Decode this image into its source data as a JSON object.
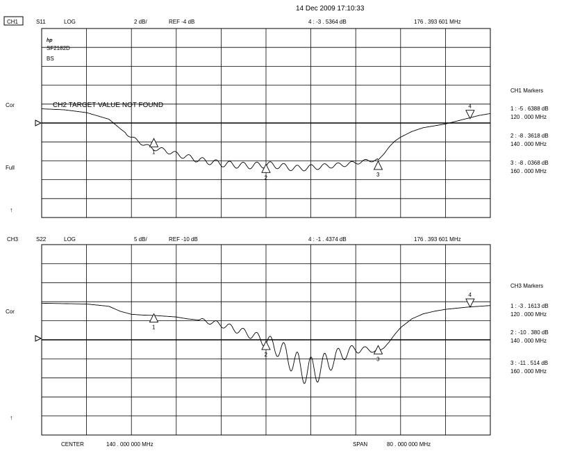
{
  "timestamp": "14 Dec 2009  17:10:33",
  "footer": {
    "center_label": "CENTER",
    "center_value": "140  . 000   000   MHz",
    "span_label": "SPAN",
    "span_value": "80 . 000   000   MHz"
  },
  "chart_data": [
    {
      "type": "line",
      "channel": "CH1",
      "param": "S11",
      "format": "LOG",
      "scale": "2 dB/",
      "ref": "REF -4 dB",
      "active_marker_readout": "4 : -3  . 5364   dB",
      "active_marker_freq": "176  . 393   601   MHz",
      "side_labels": [
        "Cor",
        "Full",
        "↑"
      ],
      "logo_text": "hp",
      "device_lines": [
        "SF2182D",
        "BS"
      ],
      "message": "CH2 TARGET VALUE NOT FOUND",
      "divisions": 10,
      "ref_value": -4,
      "db_per_div": 2,
      "ylim": [
        -14,
        6
      ],
      "xlim": [
        100,
        180
      ],
      "x_unit": "MHz",
      "series": [
        {
          "x": [
            100,
            104,
            108,
            112,
            114,
            116,
            118,
            119,
            120,
            122,
            124,
            126,
            128,
            130,
            132,
            134,
            136,
            138,
            140,
            142,
            144,
            146,
            148,
            150,
            152,
            154,
            156,
            158,
            160,
            161,
            162,
            163,
            164,
            166,
            168,
            170,
            172,
            174,
            176,
            178,
            180
          ],
          "y": [
            -2.5,
            -2.6,
            -2.9,
            -3.6,
            -4.6,
            -5.5,
            -6.2,
            -6.5,
            -6.7,
            -6.9,
            -7.3,
            -7.6,
            -7.9,
            -8.1,
            -8.3,
            -8.4,
            -8.5,
            -8.5,
            -8.4,
            -8.5,
            -8.7,
            -8.8,
            -8.7,
            -8.6,
            -8.5,
            -8.4,
            -8.2,
            -8.0,
            -7.9,
            -7.3,
            -6.5,
            -5.9,
            -5.5,
            -4.9,
            -4.5,
            -4.3,
            -4.1,
            -3.8,
            -3.5,
            -3.2,
            -3.0
          ]
        }
      ],
      "ripple_range": [
        115,
        160
      ],
      "markers": [
        {
          "id": "1",
          "freq": 120,
          "value": -5.6388,
          "dir": "up"
        },
        {
          "id": "2",
          "freq": 140,
          "value": -8.3618,
          "dir": "up"
        },
        {
          "id": "3",
          "freq": 160,
          "value": -8.0368,
          "dir": "up"
        },
        {
          "id": "4",
          "freq": 176.393601,
          "value": -3.5364,
          "dir": "down"
        }
      ],
      "marker_table": {
        "title": "CH1   Markers",
        "entries": [
          {
            "line1": "1 : -5  . 6388     dB",
            "line2": "120  . 000     MHz"
          },
          {
            "line1": "2 : -8  . 3618     dB",
            "line2": "140  . 000     MHz"
          },
          {
            "line1": "3 : -8  . 0368     dB",
            "line2": "160  . 000     MHz"
          }
        ]
      }
    },
    {
      "type": "line",
      "channel": "CH3",
      "param": "S22",
      "format": "LOG",
      "scale": "5 dB/",
      "ref": "REF -10 dB",
      "active_marker_readout": "4 : -1  . 4374   dB",
      "active_marker_freq": "176  . 393   601   MHz",
      "side_labels": [
        "Cor",
        "↑"
      ],
      "divisions": 10,
      "ref_value": -10,
      "db_per_div": 5,
      "ylim": [
        -35,
        15
      ],
      "xlim": [
        100,
        180
      ],
      "x_unit": "MHz",
      "series": [
        {
          "x": [
            100,
            104,
            108,
            112,
            114,
            116,
            118,
            120,
            122,
            124,
            126,
            128,
            130,
            132,
            134,
            136,
            138,
            140,
            142,
            144,
            146,
            148,
            150,
            152,
            154,
            156,
            158,
            160,
            161,
            162,
            163,
            164,
            166,
            168,
            170,
            172,
            174,
            176,
            178,
            180
          ],
          "y": [
            -0.4,
            -0.5,
            -0.6,
            -1.2,
            -2.5,
            -3.3,
            -3.5,
            -3.6,
            -3.8,
            -4.0,
            -4.5,
            -4.8,
            -5.3,
            -6.0,
            -6.9,
            -8.0,
            -9.0,
            -10.4,
            -12.0,
            -14.5,
            -17.2,
            -18.5,
            -17.0,
            -15.0,
            -13.5,
            -12.5,
            -12.5,
            -13.0,
            -12.2,
            -10.5,
            -8.5,
            -6.8,
            -4.5,
            -3.2,
            -2.5,
            -2.0,
            -1.7,
            -1.4,
            -1.2,
            -1.0
          ]
        }
      ],
      "ripple_range": [
        128,
        160
      ],
      "markers": [
        {
          "id": "1",
          "freq": 120,
          "value": -3.1613,
          "dir": "up"
        },
        {
          "id": "2",
          "freq": 140,
          "value": -10.38,
          "dir": "up"
        },
        {
          "id": "3",
          "freq": 160,
          "value": -11.514,
          "dir": "up"
        },
        {
          "id": "4",
          "freq": 176.393601,
          "value": -1.4374,
          "dir": "down"
        }
      ],
      "marker_table": {
        "title": "CH3   Markers",
        "entries": [
          {
            "line1": "1 : -3  . 1613     dB",
            "line2": "120  . 000     MHz"
          },
          {
            "line1": "2 : -10  . 380     dB",
            "line2": "140  . 000     MHz"
          },
          {
            "line1": "3 : -11  . 514     dB",
            "line2": "160  . 000     MHz"
          }
        ]
      }
    }
  ]
}
